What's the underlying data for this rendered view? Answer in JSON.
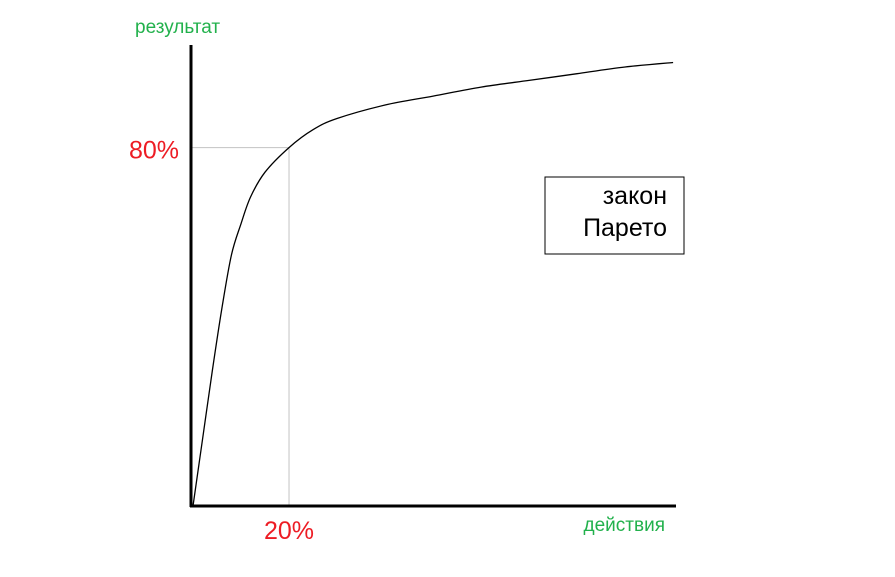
{
  "chart_data": {
    "type": "line",
    "title": "",
    "xlabel": "действия",
    "ylabel": "результат",
    "xlim": [
      0,
      100
    ],
    "ylim": [
      0,
      100
    ],
    "grid": false,
    "series": [
      {
        "x": [
          0,
          2,
          4,
          6,
          8,
          10,
          12,
          15,
          20,
          25,
          30,
          40,
          50,
          60,
          70,
          80,
          90,
          100
        ],
        "y": [
          0,
          15,
          30,
          44,
          56,
          63,
          69,
          74.5,
          80,
          84,
          86.5,
          89.5,
          91.5,
          93.5,
          95,
          96.5,
          98,
          99
        ]
      }
    ],
    "markers": {
      "x_value": 20,
      "x_label": "20%",
      "y_value": 80,
      "y_label": "80%"
    },
    "annotation": {
      "line1": "закон",
      "line2": "Парето"
    },
    "colors": {
      "axis_label": "#22b14c",
      "marker_label": "#ed1c24",
      "curve": "#000000",
      "axis": "#000000",
      "guide": "#c3c3c3",
      "box_border": "#000000"
    }
  }
}
